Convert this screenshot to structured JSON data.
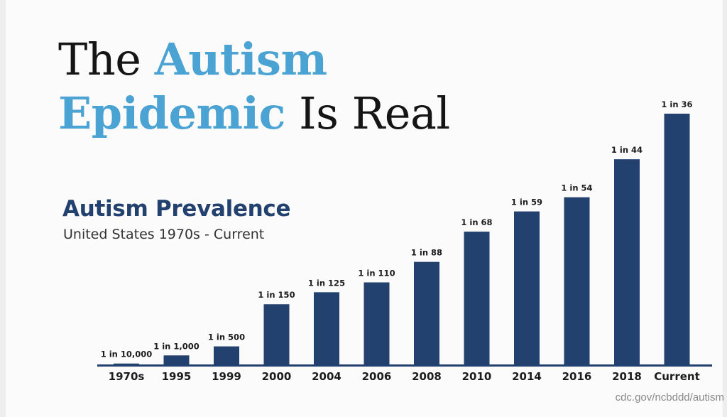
{
  "slide": {
    "title_part1": "The ",
    "title_part2": "Autism",
    "title_part3": "Epidemic",
    "title_part4": " Is Real",
    "source": "cdc.gov/ncbddd/autism"
  },
  "chart_data": {
    "type": "bar",
    "title": "Autism Prevalence",
    "subtitle": "United States 1970s - Current",
    "categories": [
      "1970s",
      "1995",
      "1999",
      "2000",
      "2004",
      "2006",
      "2008",
      "2010",
      "2014",
      "2016",
      "2018",
      "Current"
    ],
    "labels": [
      "1 in 10,000",
      "1 in 1,000",
      "1 in 500",
      "1 in 150",
      "1 in 125",
      "1 in 110",
      "1 in 88",
      "1 in 68",
      "1 in 59",
      "1 in 54",
      "1 in 44",
      "1 in 36"
    ],
    "values": [
      0.0001,
      0.001,
      0.002,
      0.00667,
      0.008,
      0.00909,
      0.01136,
      0.01471,
      0.01695,
      0.01852,
      0.02273,
      0.02778
    ],
    "ylim": [
      0,
      0.02778
    ],
    "grid": false,
    "colors": {
      "bar": "#22416f",
      "axis": "#22416f"
    }
  }
}
